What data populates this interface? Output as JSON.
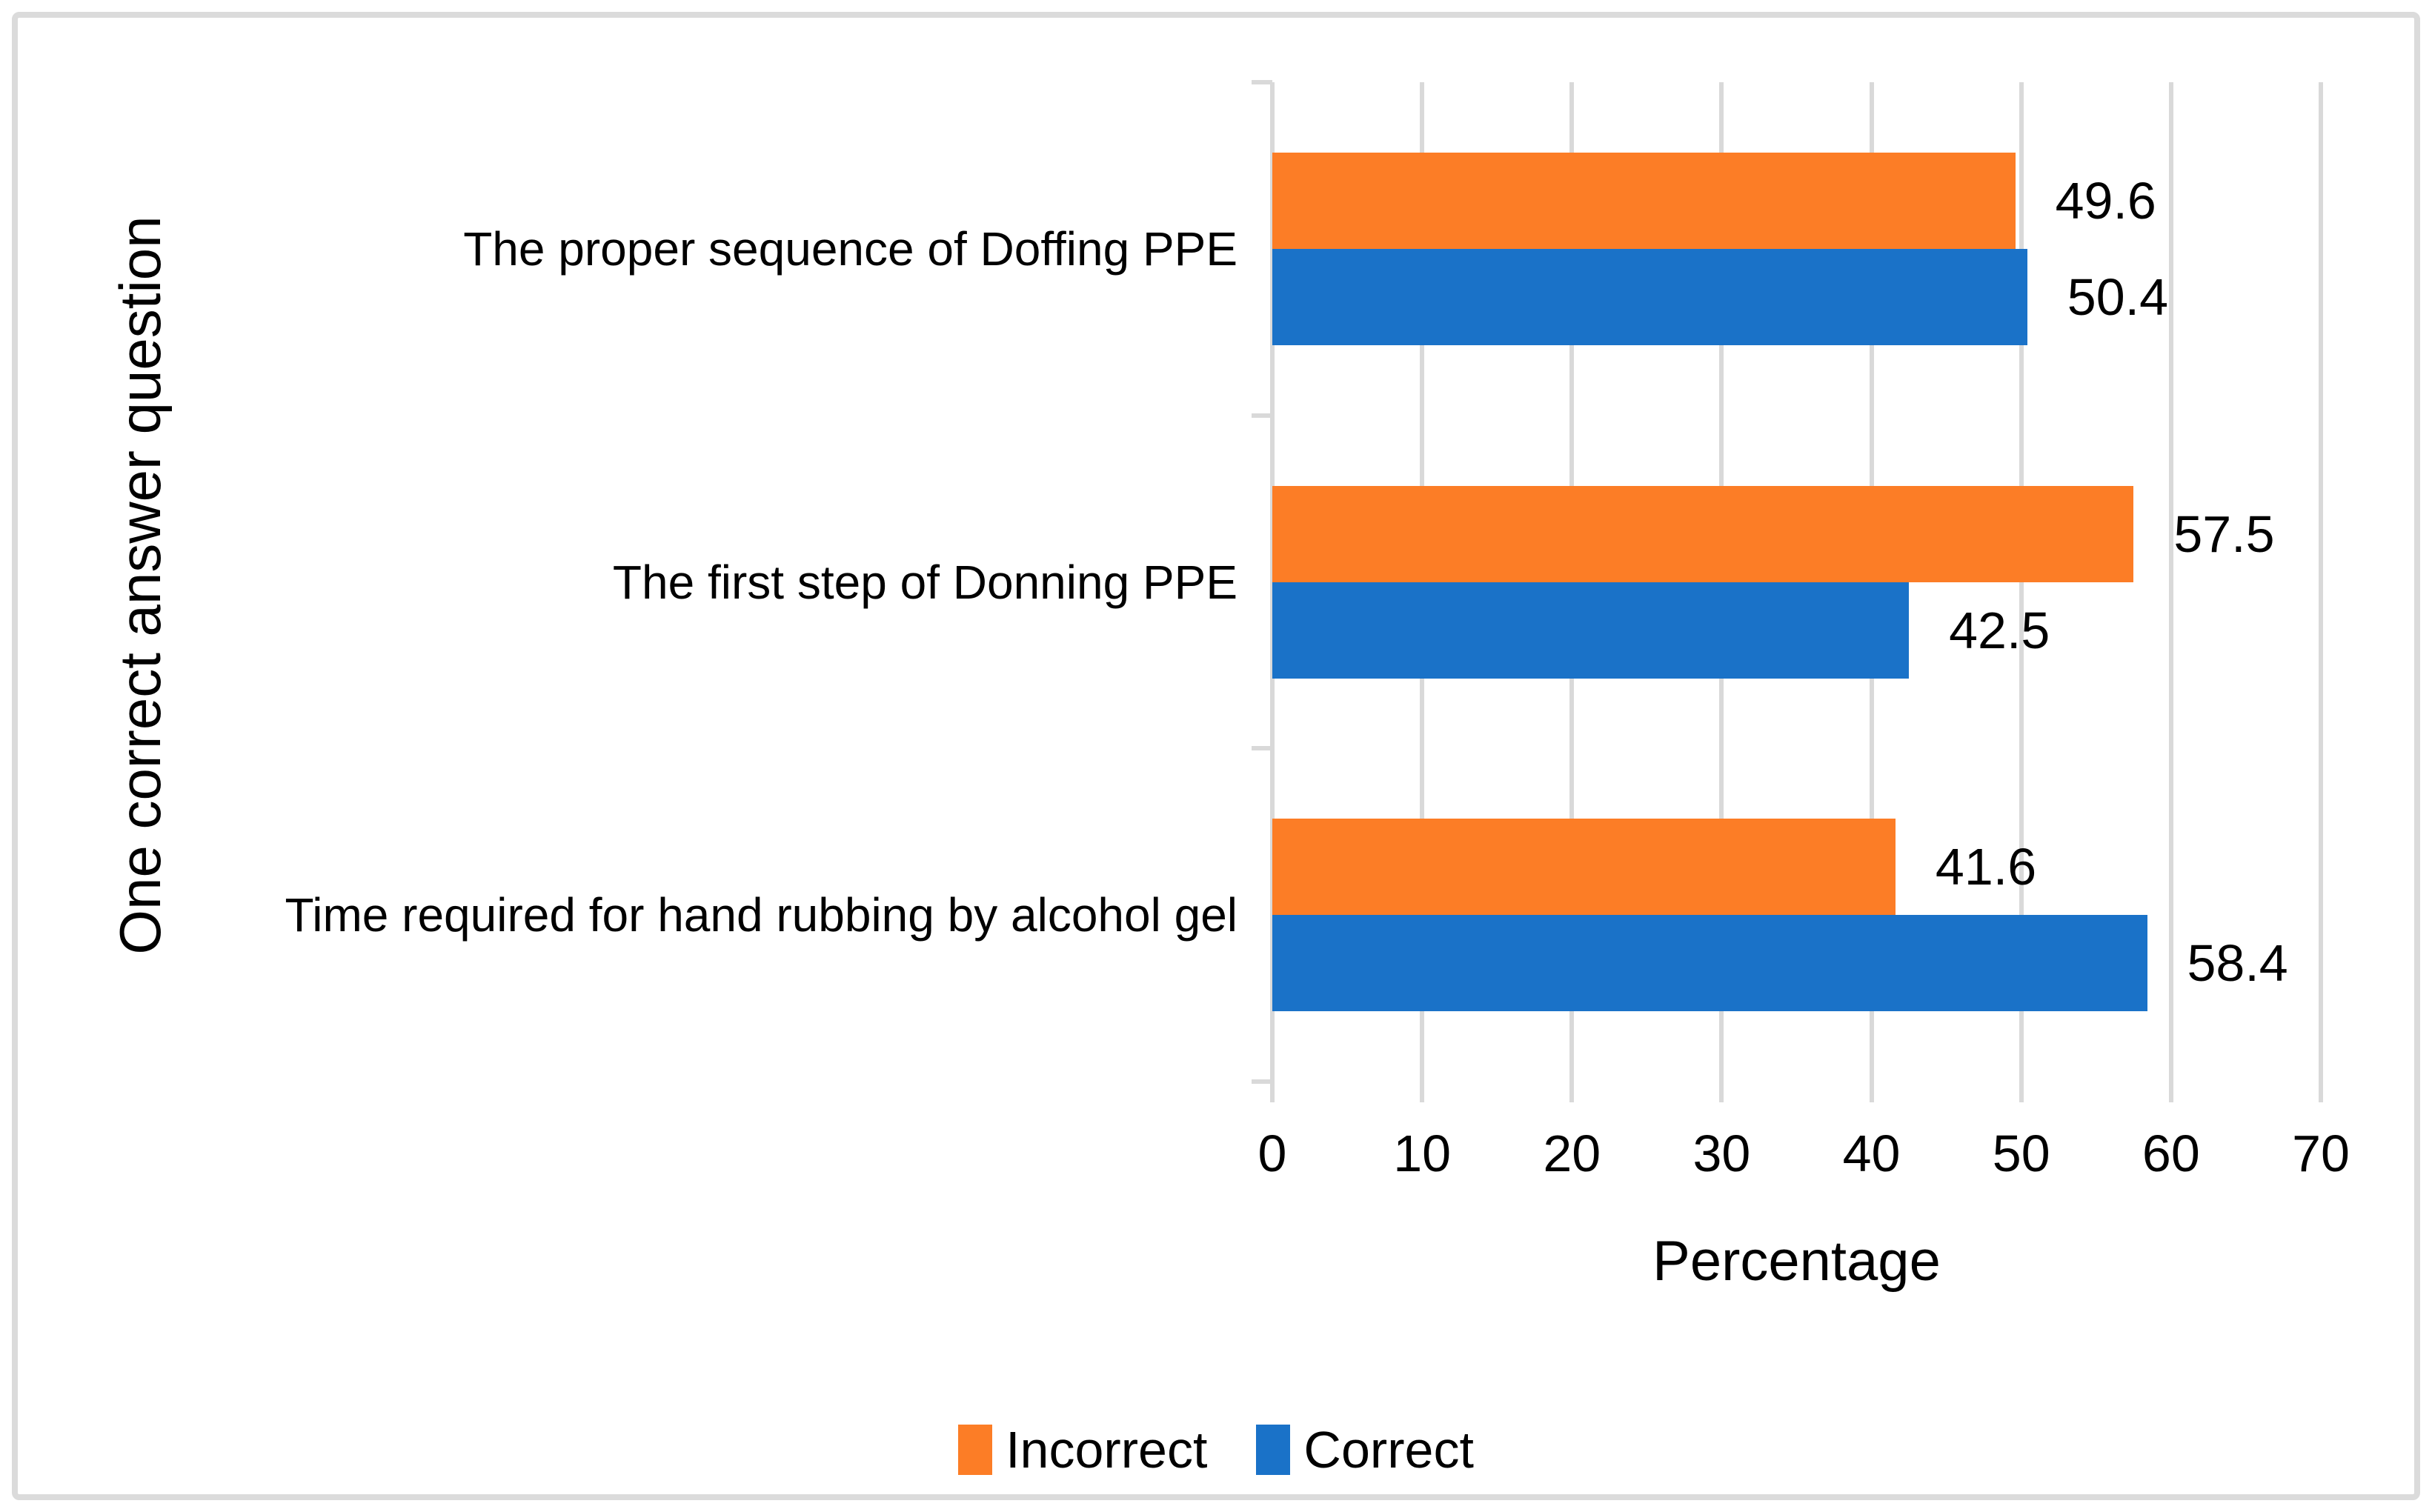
{
  "chart_data": {
    "type": "bar",
    "orientation": "horizontal",
    "xlabel": "Percentage",
    "ylabel": "One correct answer question",
    "xlim": [
      0,
      70
    ],
    "xticks": [
      0,
      10,
      20,
      30,
      40,
      50,
      60,
      70
    ],
    "grid": true,
    "legend_position": "bottom",
    "categories": [
      "The proper sequence of Doffing PPE",
      "The first step of Donning PPE",
      "Time required for hand rubbing by alcohol gel"
    ],
    "series": [
      {
        "name": "Incorrect",
        "color": "#FC7D26",
        "values": [
          49.6,
          57.5,
          41.6
        ]
      },
      {
        "name": "Correct",
        "color": "#1A72C8",
        "values": [
          50.4,
          42.5,
          58.4
        ]
      }
    ],
    "colors": {
      "grid": "#D9D9D9",
      "frame_border": "#DBDBDB",
      "text": "#000000"
    }
  }
}
